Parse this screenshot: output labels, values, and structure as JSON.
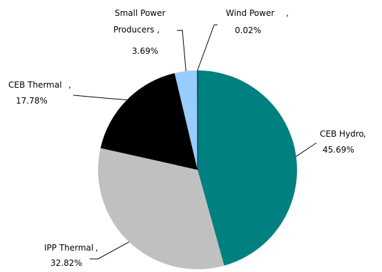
{
  "chart_data": {
    "type": "pie",
    "title": "",
    "slices": [
      {
        "label": "CEB Hydro",
        "value": 45.69,
        "value_text": "45.69%",
        "color": "#008080"
      },
      {
        "label": "IPP Thermal",
        "value": 32.82,
        "value_text": "32.82%",
        "color": "#c0c0c0"
      },
      {
        "label": "CEB Thermal",
        "value": 17.78,
        "value_text": "17.78%",
        "color": "#000000"
      },
      {
        "label": "Small Power Producers",
        "value": 3.69,
        "value_text": "3.69%",
        "color": "#99ccff"
      },
      {
        "label": "Wind Power",
        "value": 0.02,
        "value_text": "0.02%",
        "color": "#ffffff"
      }
    ],
    "start": "12 o'clock",
    "direction": "clockwise",
    "legend": "none",
    "data_labels": "outside with leader lines"
  }
}
